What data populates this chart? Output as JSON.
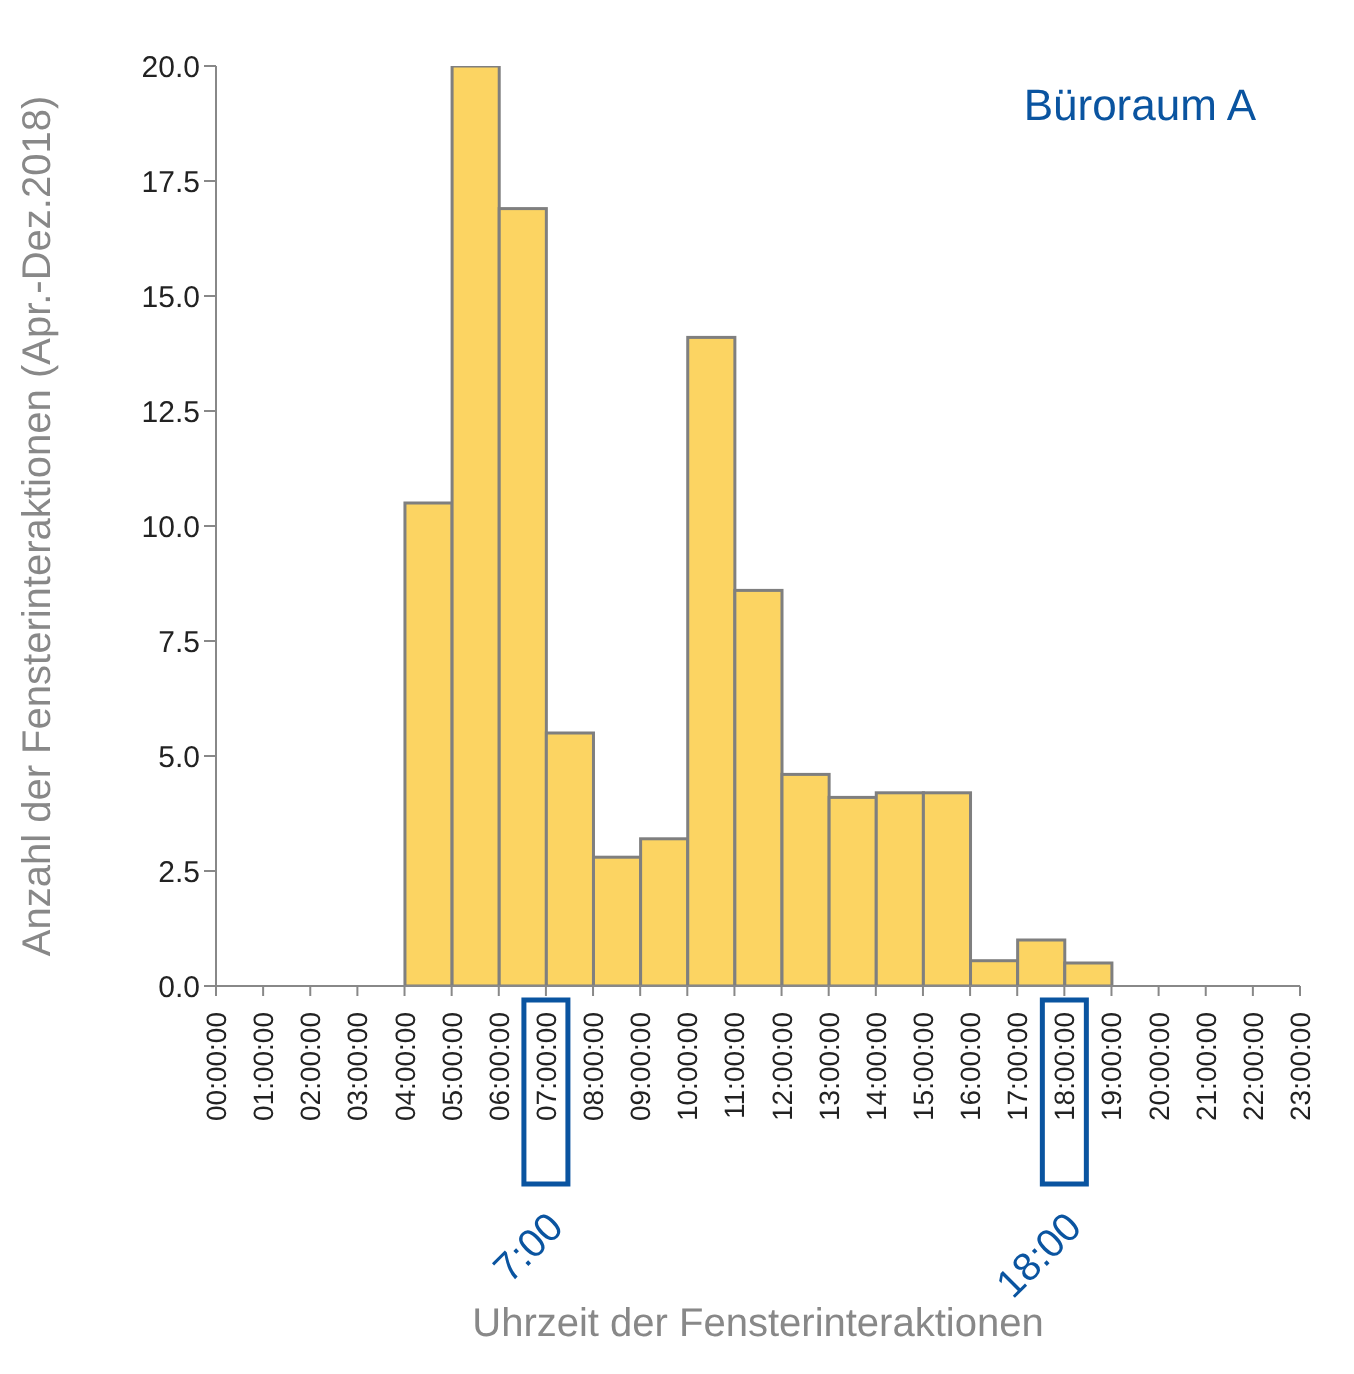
{
  "chart_data": {
    "type": "histogram",
    "xlabel": "Uhrzeit der Fensterinteraktionen",
    "ylabel": "Anzahl der Fensterinteraktionen (Apr.-Dez.2018)",
    "bins": [
      0,
      1,
      2,
      3,
      4,
      5,
      6,
      7,
      8,
      9,
      10,
      11,
      12,
      13,
      14,
      15,
      16,
      17,
      18,
      19,
      20,
      21,
      22,
      23
    ],
    "values": [
      0,
      0,
      0,
      0,
      10.5,
      20,
      16.9,
      5.5,
      2.8,
      3.2,
      14.1,
      8.6,
      4.6,
      4.1,
      4.2,
      4.2,
      0.55,
      1.0,
      0.5,
      0,
      0,
      0,
      0
    ],
    "color": "#fcd462",
    "xlim": [
      0,
      23
    ],
    "xticks": [
      {
        "value": 0,
        "label": "00:00:00"
      },
      {
        "value": 1,
        "label": "01:00:00"
      },
      {
        "value": 2,
        "label": "02:00:00"
      },
      {
        "value": 3,
        "label": "03:00:00"
      },
      {
        "value": 4,
        "label": "04:00:00"
      },
      {
        "value": 5,
        "label": "05:00:00"
      },
      {
        "value": 6,
        "label": "06:00:00"
      },
      {
        "value": 7,
        "label": "07:00:00"
      },
      {
        "value": 8,
        "label": "08:00:00"
      },
      {
        "value": 9,
        "label": "09:00:00"
      },
      {
        "value": 10,
        "label": "10:00:00"
      },
      {
        "value": 11,
        "label": "11:00:00"
      },
      {
        "value": 12,
        "label": "12:00:00"
      },
      {
        "value": 13,
        "label": "13:00:00"
      },
      {
        "value": 14,
        "label": "14:00:00"
      },
      {
        "value": 15,
        "label": "15:00:00"
      },
      {
        "value": 16,
        "label": "16:00:00"
      },
      {
        "value": 17,
        "label": "17:00:00"
      },
      {
        "value": 18,
        "label": "18:00:00"
      },
      {
        "value": 19,
        "label": "19:00:00"
      },
      {
        "value": 20,
        "label": "20:00:00"
      },
      {
        "value": 21,
        "label": "21:00:00"
      },
      {
        "value": 22,
        "label": "22:00:00"
      },
      {
        "value": 23,
        "label": "23:00:00"
      }
    ],
    "ylim": [
      0,
      20
    ],
    "yticks": [
      {
        "value": 0,
        "label": "0.0"
      },
      {
        "value": 2.5,
        "label": "2.5"
      },
      {
        "value": 5,
        "label": "5.0"
      },
      {
        "value": 7.5,
        "label": "7.5"
      },
      {
        "value": 10,
        "label": "10.0"
      },
      {
        "value": 12.5,
        "label": "12.5"
      },
      {
        "value": 15,
        "label": "15.0"
      },
      {
        "value": 17.5,
        "label": "17.5"
      },
      {
        "value": 20,
        "label": "20.0"
      }
    ],
    "annotations": [
      "Büroraum A",
      "7:00",
      "18:00"
    ]
  }
}
